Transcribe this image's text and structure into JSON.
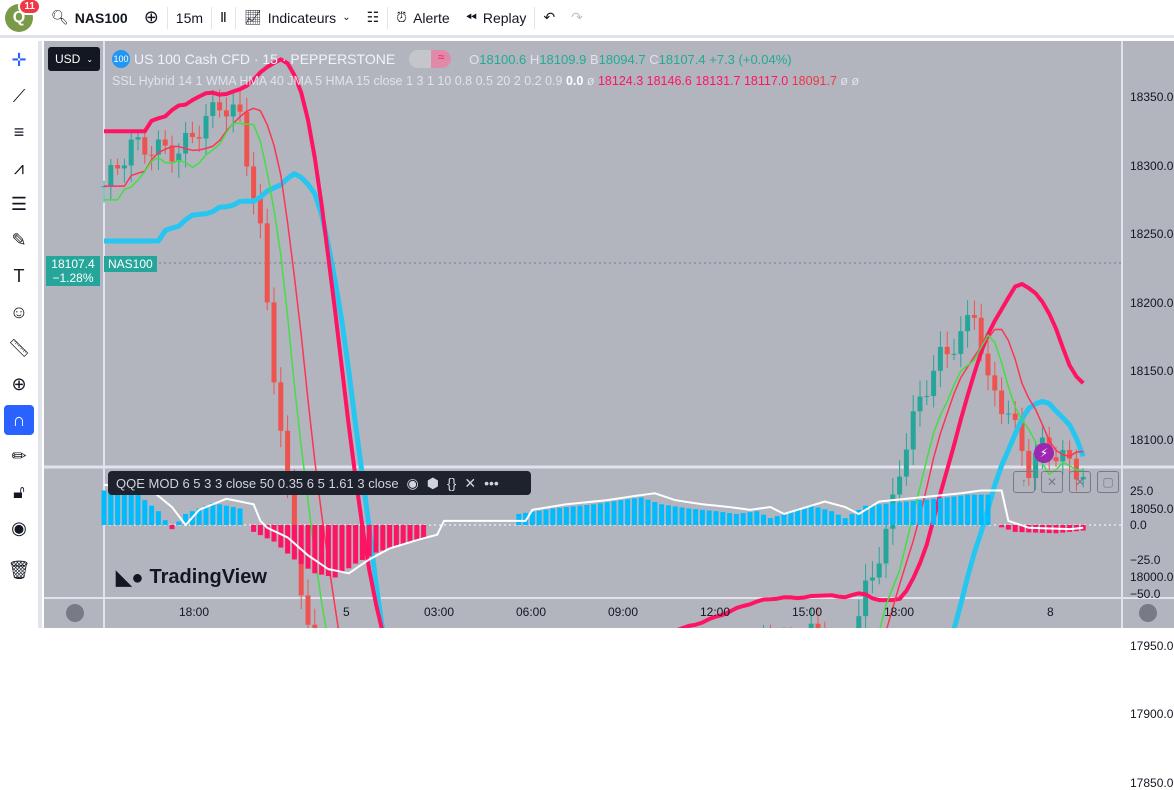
{
  "topbar": {
    "notifications": "11",
    "avatar_letter": "Q",
    "symbol": "NAS100",
    "interval": "15m",
    "indicators": "Indicateurs",
    "alert": "Alerte",
    "replay": "Replay"
  },
  "chart": {
    "currency": "USD",
    "symbol_badge": "100",
    "title": "US 100 Cash CFD · 15 · PEPPERSTONE",
    "ohlc": {
      "o_label": "O",
      "o": "18100.6",
      "h_label": "H",
      "h": "18109.9",
      "b_label": "B",
      "b": "18094.7",
      "c_label": "C",
      "c": "18107.4",
      "change": "+7.3 (+0.04%)"
    },
    "ssl": {
      "label": "SSL Hybrid 14 1 WMA HMA 40 JMA 5 HMA 15 close 1 3 1 10 0.8 0.5 20 2 0.2 0.9",
      "v0": "0.0",
      "nil": "ø",
      "v1": "18124.3",
      "v2": "18146.6",
      "v3": "18131.7",
      "v4": "18117.0",
      "v5": "18091.7",
      "nil2": "ø ø"
    },
    "price_ticks": [
      "18350.0",
      "18300.0",
      "18250.0",
      "18200.0",
      "18150.0",
      "18100.0",
      "18050.0",
      "18000.0",
      "17950.0",
      "17900.0",
      "17850.0"
    ],
    "last_price": "18107.4",
    "last_change": "−1.28%",
    "last_tag": "NAS100",
    "time_ticks": [
      "18:00",
      "5",
      "03:00",
      "06:00",
      "09:00",
      "12:00",
      "15:00",
      "18:00",
      "8"
    ],
    "price_path": [
      [
        0,
        18285
      ],
      [
        4,
        18315
      ],
      [
        11,
        18310
      ],
      [
        17,
        18345
      ],
      [
        20,
        18335
      ],
      [
        23,
        18250
      ],
      [
        25,
        18150
      ],
      [
        27,
        18060
      ],
      [
        30,
        17960
      ],
      [
        32,
        17900
      ],
      [
        35,
        17875
      ],
      [
        37,
        17880
      ],
      [
        40,
        17900
      ],
      [
        46,
        17905
      ],
      [
        52,
        17890
      ],
      [
        56,
        17885
      ],
      [
        62,
        17905
      ],
      [
        70,
        17915
      ],
      [
        78,
        17925
      ],
      [
        88,
        17945
      ],
      [
        95,
        17945
      ],
      [
        100,
        17950
      ],
      [
        102,
        17935
      ],
      [
        104,
        17960
      ],
      [
        107,
        17935
      ],
      [
        109,
        17930
      ],
      [
        112,
        17990
      ],
      [
        115,
        18030
      ],
      [
        117,
        18080
      ],
      [
        120,
        18130
      ],
      [
        123,
        18160
      ],
      [
        126,
        18175
      ],
      [
        128,
        18195
      ],
      [
        130,
        18140
      ],
      [
        133,
        18120
      ],
      [
        136,
        18080
      ],
      [
        140,
        18090
      ],
      [
        144,
        18075
      ],
      [
        147,
        18100
      ],
      [
        138,
        18095
      ]
    ],
    "qqe": {
      "label": "QQE MOD 6 5 3 3 close 50 0.35 6 5 1.61 3 close",
      "ticks": [
        "25.0",
        "0.0",
        "−25.0",
        "−50.0"
      ],
      "path": [
        [
          0,
          25
        ],
        [
          5,
          22
        ],
        [
          8,
          10
        ],
        [
          10,
          -3
        ],
        [
          12,
          8
        ],
        [
          16,
          16
        ],
        [
          20,
          12
        ],
        [
          21,
          0
        ],
        [
          22,
          -5
        ],
        [
          25,
          -12
        ],
        [
          28,
          -25
        ],
        [
          31,
          -35
        ],
        [
          34,
          -38
        ],
        [
          37,
          -28
        ],
        [
          40,
          -20
        ],
        [
          44,
          -14
        ],
        [
          47,
          -10
        ],
        [
          48,
          0
        ],
        [
          60,
          0
        ],
        [
          61,
          8
        ],
        [
          66,
          12
        ],
        [
          72,
          15
        ],
        [
          76,
          18
        ],
        [
          79,
          20
        ],
        [
          82,
          15
        ],
        [
          86,
          12
        ],
        [
          90,
          10
        ],
        [
          93,
          8
        ],
        [
          96,
          10
        ],
        [
          98,
          5
        ],
        [
          100,
          8
        ],
        [
          104,
          14
        ],
        [
          107,
          10
        ],
        [
          109,
          5
        ],
        [
          112,
          14
        ],
        [
          116,
          16
        ],
        [
          120,
          18
        ],
        [
          124,
          20
        ],
        [
          127,
          22
        ],
        [
          130,
          22
        ],
        [
          131,
          0
        ],
        [
          134,
          -5
        ],
        [
          140,
          -6
        ],
        [
          144,
          -4
        ]
      ]
    },
    "colors": {
      "up": "#26a69a",
      "down": "#ef5350",
      "ssl_pink": "#ff1463",
      "ssl_blue": "#26c6f0",
      "hist_pos": "#00bcff",
      "hist_neg": "#ff1463"
    },
    "watermark": "TradingView"
  }
}
